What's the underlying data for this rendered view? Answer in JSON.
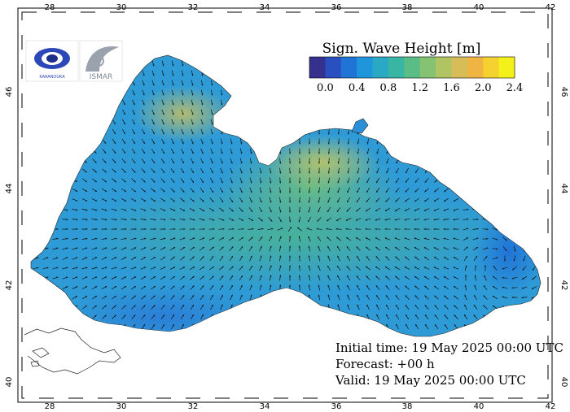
{
  "map": {
    "colorbar": {
      "title": "Sign. Wave Height [m]",
      "tick_labels": [
        "0.0",
        "0.4",
        "0.8",
        "1.2",
        "1.6",
        "2.0",
        "2.4"
      ],
      "colors": [
        "#36308f",
        "#2a4fc1",
        "#1f74d6",
        "#1f96dc",
        "#2aa9c4",
        "#39b5a3",
        "#5bbd86",
        "#85c272",
        "#b0c464",
        "#d6bd58",
        "#efb442",
        "#f5d12f",
        "#f4f11a"
      ]
    },
    "axes": {
      "lon_labels": [
        "28",
        "30",
        "32",
        "34",
        "36",
        "38",
        "40",
        "42"
      ],
      "lat_labels": [
        "40",
        "42",
        "44",
        "46"
      ]
    },
    "info": {
      "initial": "Initial time: 19 May 2025 00:00 UTC",
      "forecast": "Forecast: +00 h",
      "valid": "Valid: 19 May 2025 00:00 UTC"
    },
    "logos": {
      "left_text": "KARANOUKA",
      "right_text": "ISMAR"
    },
    "colors": {
      "sea_base": "#2e9bd6",
      "land": "#ffffff",
      "frame": "#000000"
    }
  }
}
